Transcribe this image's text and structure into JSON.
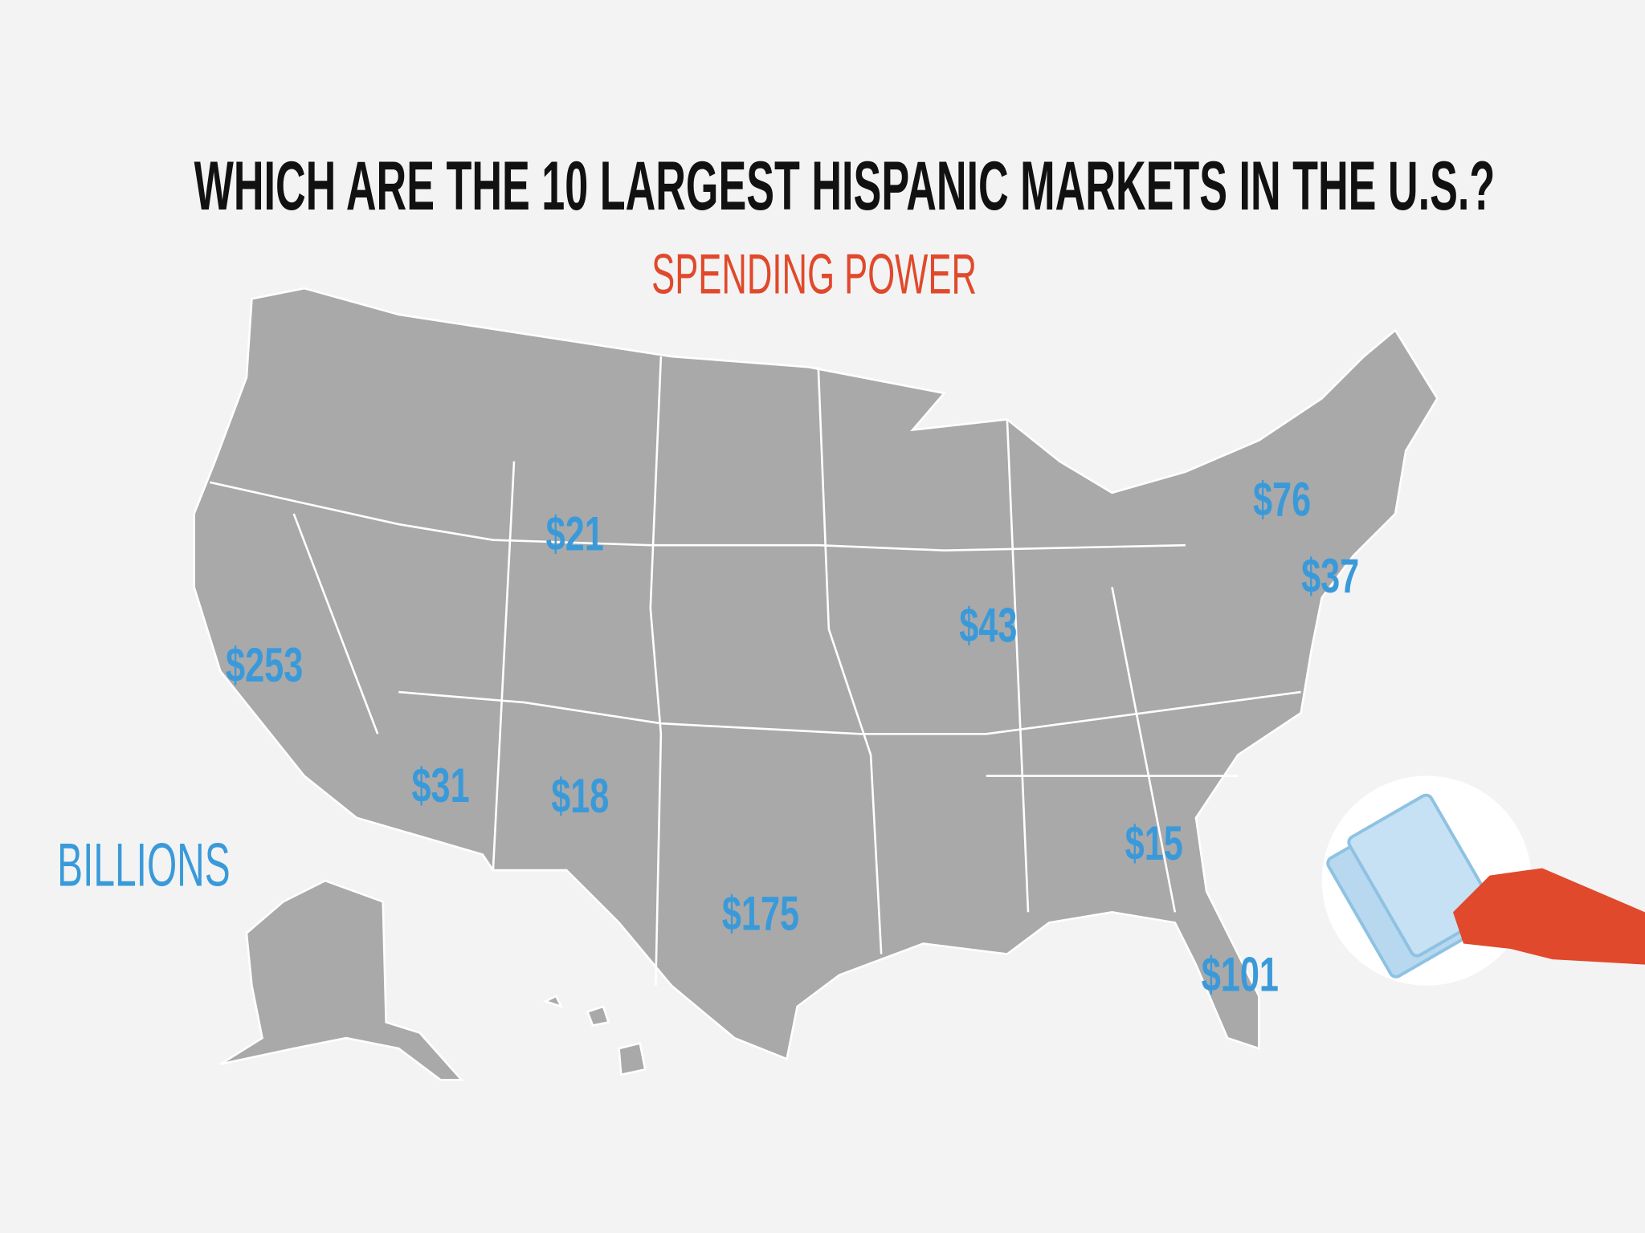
{
  "header": {
    "title": "WHICH ARE THE 10 LARGEST HISPANIC MARKETS IN THE U.S.?",
    "subtitle": "SPENDING POWER"
  },
  "unit_label": "BILLIONS",
  "markets": [
    {
      "label": "$21"
    },
    {
      "label": "$76"
    },
    {
      "label": "$37"
    },
    {
      "label": "$43"
    },
    {
      "label": "$253"
    },
    {
      "label": "$31"
    },
    {
      "label": "$18"
    },
    {
      "label": "$15"
    },
    {
      "label": "$175"
    },
    {
      "label": "$101"
    }
  ]
}
